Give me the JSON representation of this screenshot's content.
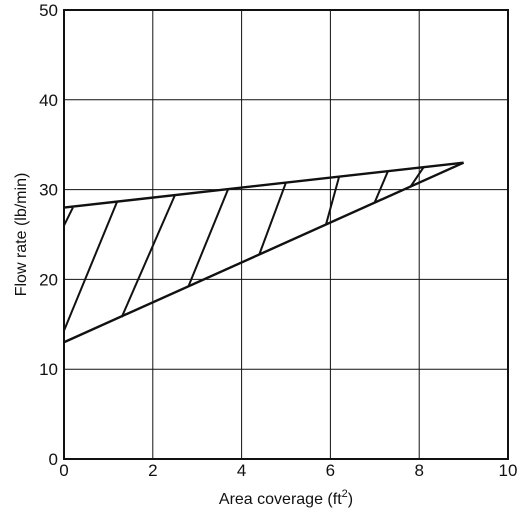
{
  "chart_data": {
    "type": "area",
    "title": "",
    "xlabel": "Area coverage (ft",
    "xlabel_sup": "2",
    "xlabel_close": ")",
    "ylabel": "Flow rate (lb/min)",
    "xlim": [
      0,
      10
    ],
    "ylim": [
      0,
      50
    ],
    "xticks": [
      0,
      2,
      4,
      6,
      8,
      10
    ],
    "yticks": [
      0,
      10,
      20,
      30,
      40,
      50
    ],
    "tick_labels_x": [
      "0",
      "2",
      "4",
      "6",
      "8",
      "10"
    ],
    "tick_labels_y": [
      "0",
      "10",
      "20",
      "30",
      "40",
      "50"
    ],
    "grid": true,
    "series": [
      {
        "role": "upper-boundary",
        "x": [
          0,
          9.0
        ],
        "y": [
          28.0,
          33.0
        ]
      },
      {
        "role": "lower-boundary",
        "x": [
          0,
          9.0
        ],
        "y": [
          13.0,
          33.0
        ]
      }
    ],
    "hatch_lines": [
      {
        "x": [
          0.0,
          0.2
        ],
        "y": [
          26.0,
          28.0
        ]
      },
      {
        "x": [
          0.0,
          1.2
        ],
        "y": [
          14.3,
          28.7
        ]
      },
      {
        "x": [
          1.3,
          2.5
        ],
        "y": [
          15.8,
          29.4
        ]
      },
      {
        "x": [
          2.8,
          3.7
        ],
        "y": [
          19.2,
          30.1
        ]
      },
      {
        "x": [
          4.4,
          5.0
        ],
        "y": [
          22.8,
          30.8
        ]
      },
      {
        "x": [
          5.9,
          6.2
        ],
        "y": [
          26.1,
          31.5
        ]
      },
      {
        "x": [
          7.0,
          7.3
        ],
        "y": [
          28.6,
          32.1
        ]
      },
      {
        "x": [
          7.8,
          8.1
        ],
        "y": [
          30.3,
          32.5
        ]
      }
    ]
  }
}
